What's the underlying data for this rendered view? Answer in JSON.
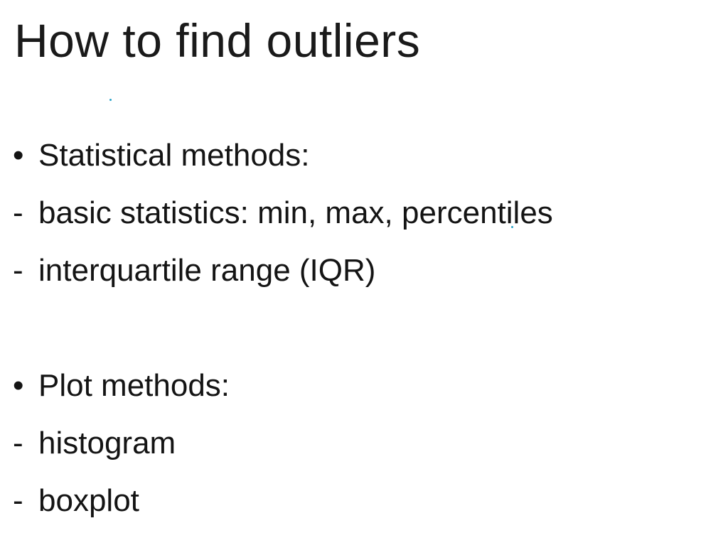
{
  "slide": {
    "title": "How to find outliers",
    "accent_color": "#2aa3c9",
    "items": [
      {
        "marker": "•",
        "text": "Statistical methods:"
      },
      {
        "marker": "-",
        "text": "basic statistics: min, max, percentiles"
      },
      {
        "marker": "-",
        "text": "interquartile range (IQR)"
      },
      {
        "marker": "•",
        "text": "Plot methods:"
      },
      {
        "marker": "-",
        "text": "histogram"
      },
      {
        "marker": "-",
        "text": "boxplot"
      }
    ]
  }
}
